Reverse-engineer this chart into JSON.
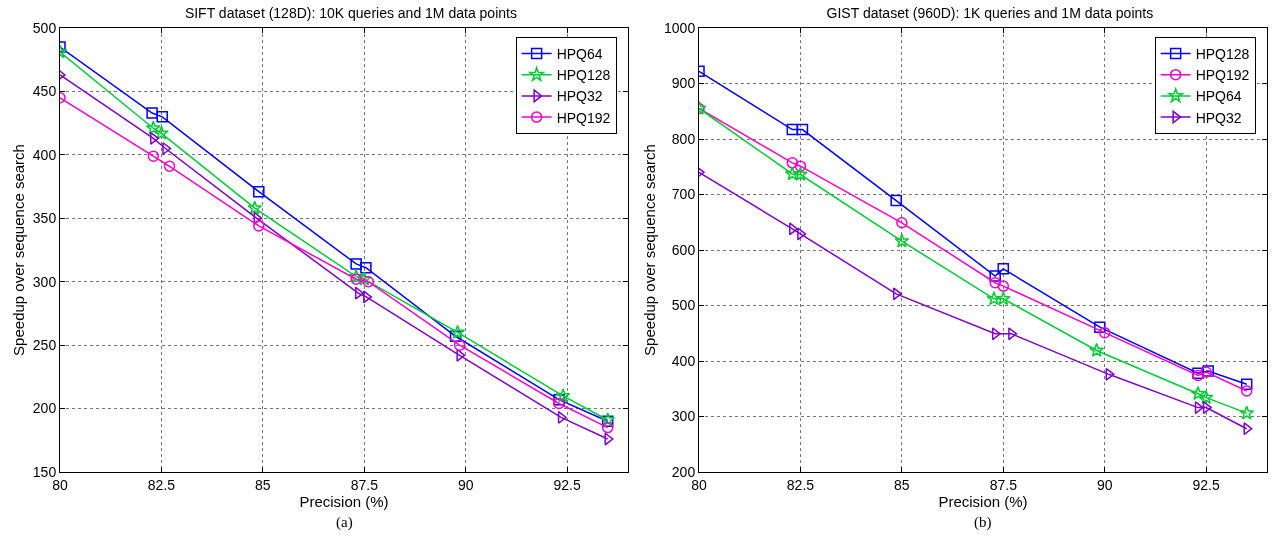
{
  "chart_data": [
    {
      "type": "line",
      "title": "SIFT dataset (128D): 10K queries and 1M data points",
      "xlabel": "Precision (%)",
      "ylabel": "Speedup over sequence search",
      "annotations": [
        "(a)"
      ],
      "xlim": [
        80,
        94
      ],
      "xticks": [
        80,
        82.5,
        85,
        87.5,
        90,
        92.5
      ],
      "ylim": [
        150,
        500
      ],
      "yticks": [
        150,
        200,
        250,
        300,
        350,
        400,
        450,
        500
      ],
      "grid": true,
      "legend": "top right",
      "line_style": "solid",
      "series": [
        {
          "name": "HPQ64",
          "color": "#0000ff",
          "marker": "square",
          "x": [
            80,
            82.27,
            82.52,
            84.9,
            87.3,
            87.54,
            89.75,
            92.3,
            93.5
          ],
          "values": [
            485,
            433,
            430,
            371,
            314,
            311,
            257,
            207,
            190
          ]
        },
        {
          "name": "HPQ128",
          "color": "#00cc33",
          "marker": "star",
          "x": [
            80,
            82.3,
            82.5,
            84.8,
            87.3,
            87.5,
            89.8,
            92.4,
            93.5
          ],
          "values": [
            481,
            421,
            417,
            358,
            304,
            302,
            260,
            210,
            191
          ]
        },
        {
          "name": "HPQ32",
          "color": "#8000cc",
          "marker": "triangle",
          "x": [
            80,
            82.3,
            82.6,
            84.85,
            87.35,
            87.55,
            89.85,
            92.35,
            93.5
          ],
          "values": [
            463,
            413,
            405,
            350,
            291,
            288,
            242,
            193,
            176
          ]
        },
        {
          "name": "HPQ192",
          "color": "#ff00cc",
          "marker": "circle",
          "x": [
            80,
            82.3,
            82.7,
            84.9,
            87.3,
            87.6,
            89.85,
            92.3,
            93.5
          ],
          "values": [
            445,
            399,
            391,
            344,
            302,
            300,
            250,
            204,
            185
          ]
        }
      ]
    },
    {
      "type": "line",
      "title": "GIST dataset (960D): 1K queries and 1M data points",
      "xlabel": "Precision (%)",
      "ylabel": "Speedup over sequence search",
      "annotations": [
        "(b)"
      ],
      "xlim": [
        80,
        94
      ],
      "xticks": [
        80,
        82.5,
        85,
        87.5,
        90,
        92.5
      ],
      "ylim": [
        200,
        1000
      ],
      "yticks": [
        200,
        300,
        400,
        500,
        600,
        700,
        800,
        900,
        1000
      ],
      "grid": true,
      "legend": "top right",
      "line_style": "solid",
      "series": [
        {
          "name": "HPQ128",
          "color": "#0000ff",
          "marker": "square",
          "x": [
            80,
            82.3,
            82.55,
            84.86,
            87.3,
            87.5,
            89.88,
            92.3,
            92.55,
            93.5
          ],
          "values": [
            922,
            817,
            817,
            689,
            553,
            566,
            461,
            378,
            382,
            358
          ]
        },
        {
          "name": "HPQ192",
          "color": "#ff00cc",
          "marker": "circle",
          "x": [
            80,
            82.3,
            82.5,
            85,
            87.3,
            87.5,
            90,
            92.3,
            92.5,
            93.5
          ],
          "values": [
            855,
            757,
            751,
            649,
            541,
            535,
            451,
            374,
            380,
            346
          ]
        },
        {
          "name": "HPQ64",
          "color": "#00cc33",
          "marker": "star",
          "x": [
            80,
            82.3,
            82.5,
            85,
            87.27,
            87.5,
            89.8,
            92.3,
            92.5,
            93.5
          ],
          "values": [
            855,
            737,
            736,
            616,
            512,
            512,
            419,
            341,
            334,
            306
          ]
        },
        {
          "name": "HPQ32",
          "color": "#8000cc",
          "marker": "triangle",
          "x": [
            80,
            82.3,
            82.5,
            84.86,
            87.3,
            87.7,
            90.1,
            92.3,
            92.5,
            93.5
          ],
          "values": [
            740,
            638,
            629,
            521,
            449,
            449,
            376,
            316,
            316,
            278
          ]
        }
      ]
    }
  ]
}
